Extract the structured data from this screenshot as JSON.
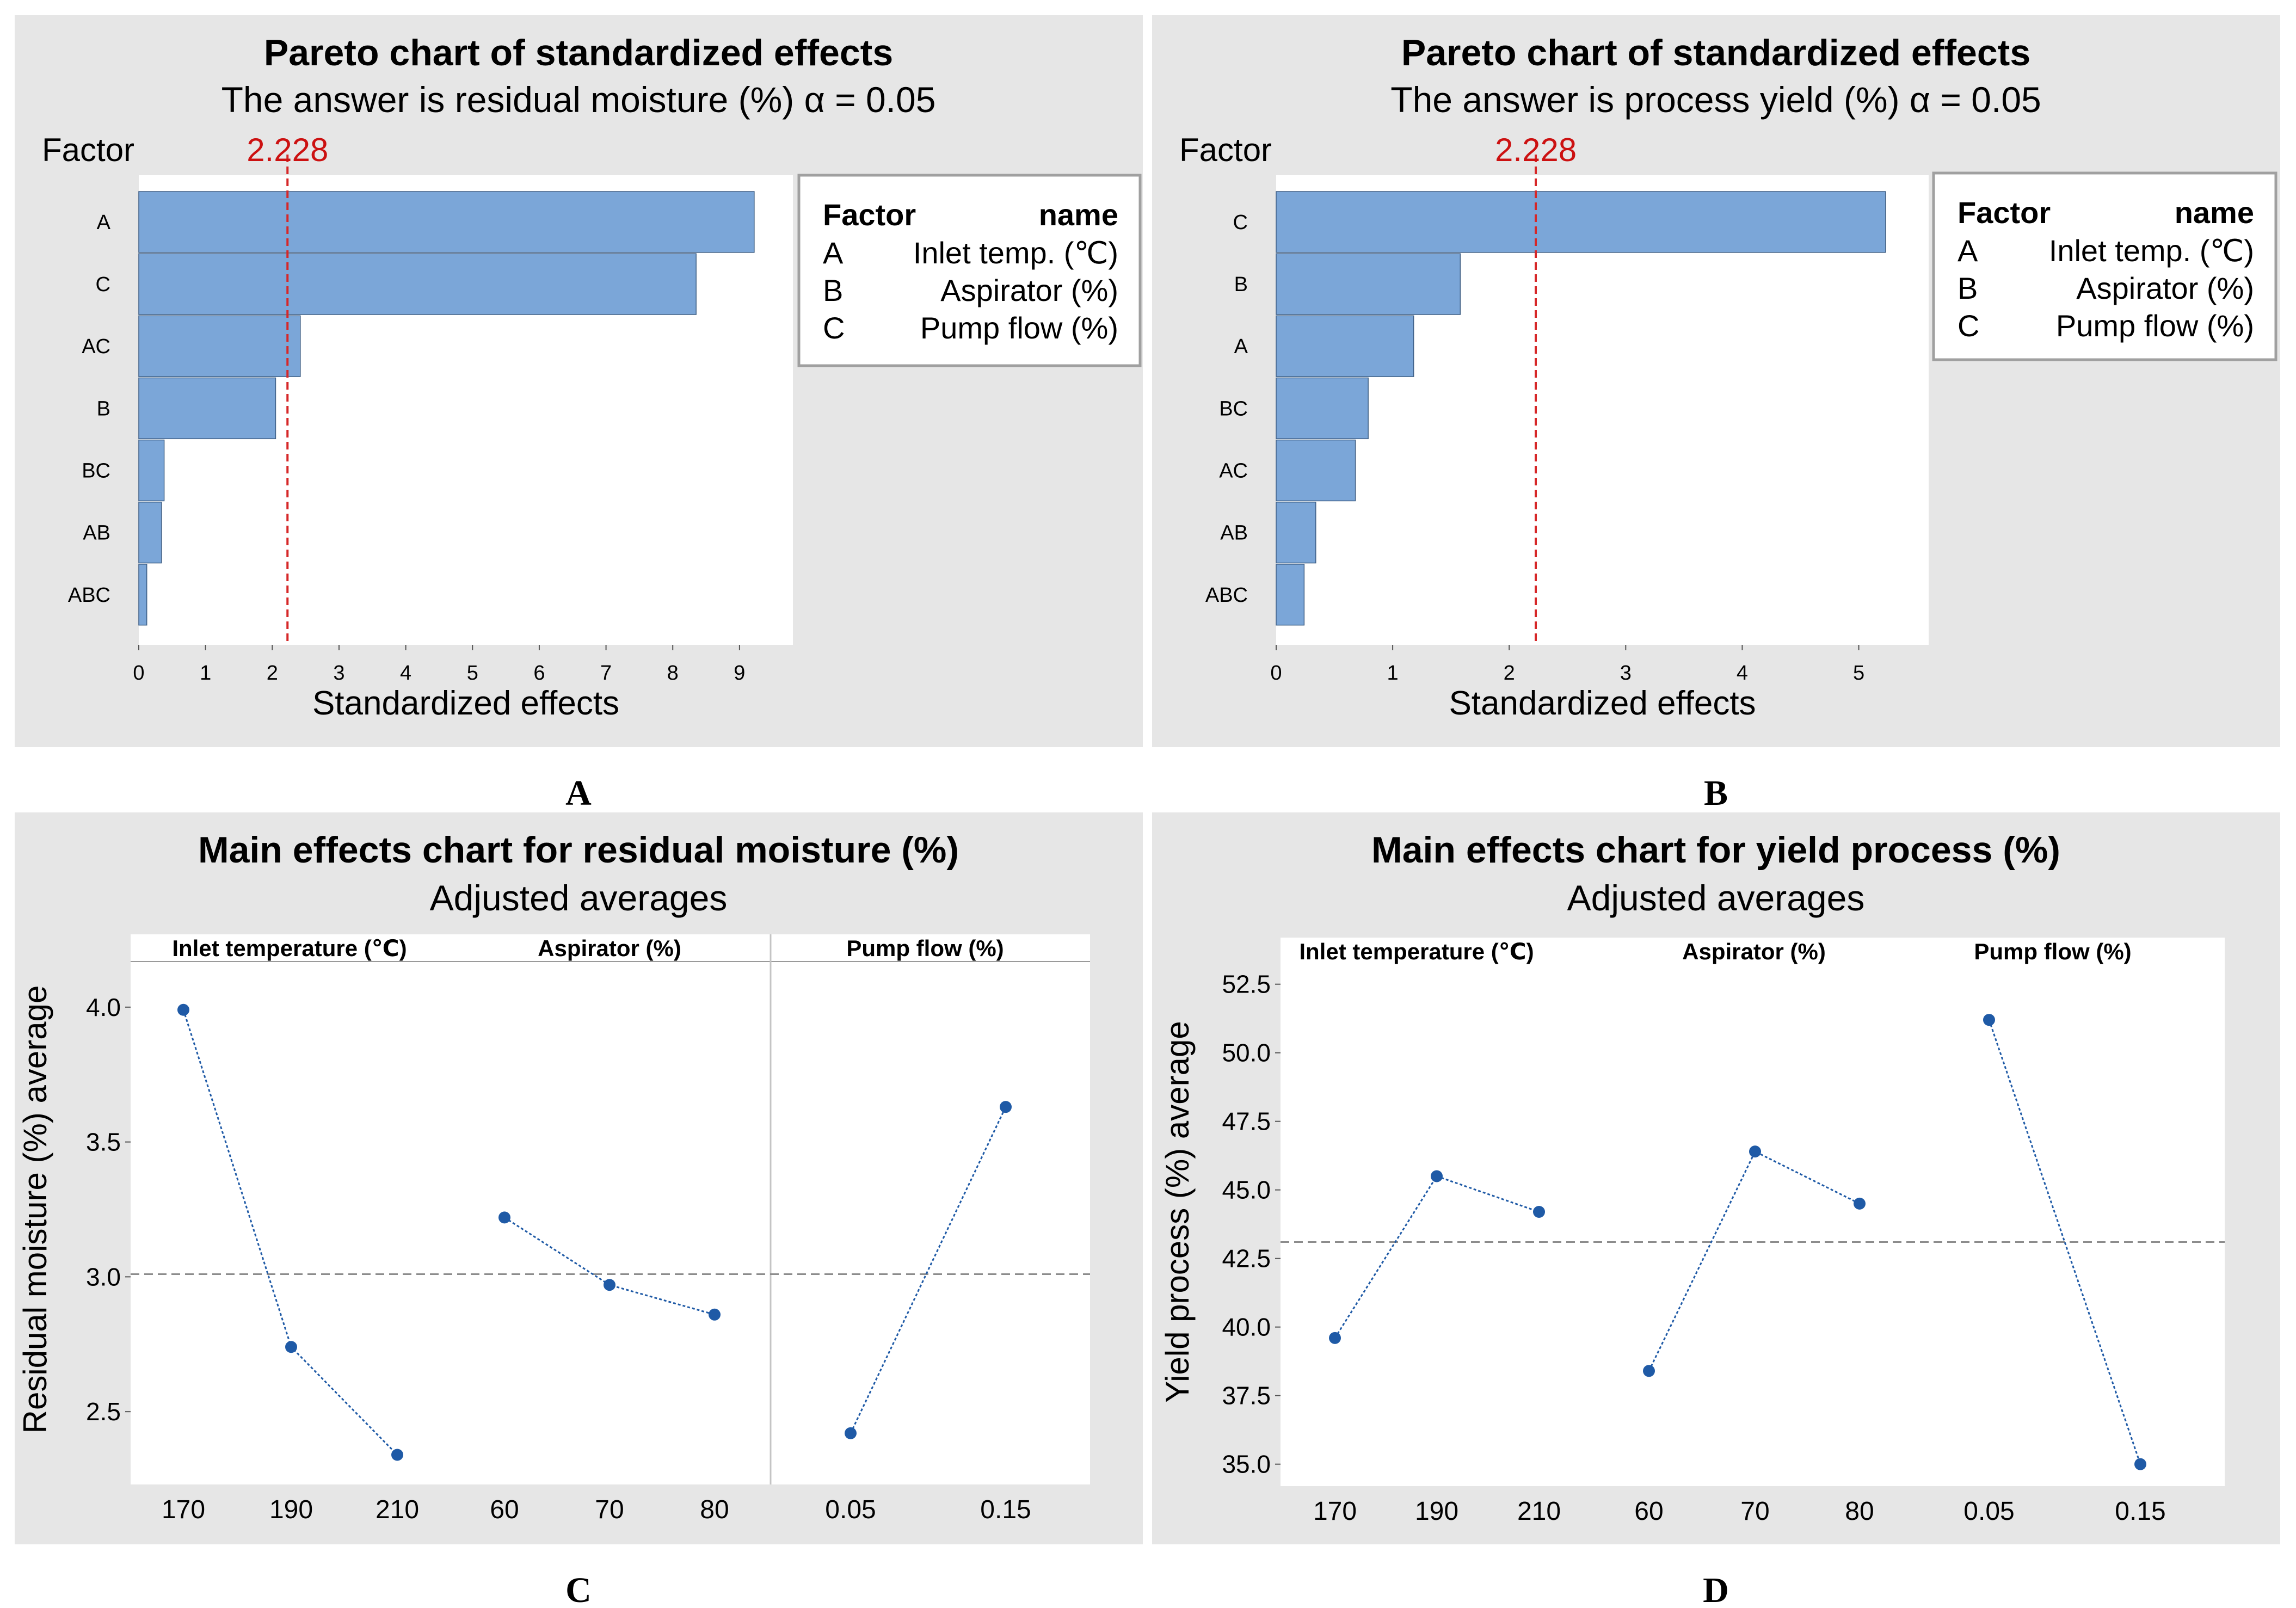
{
  "figure": {
    "background": "#ffffff",
    "panel_background": "#e6e6e6",
    "plot_background": "#ffffff"
  },
  "chart_data": [
    {
      "type": "bar",
      "orientation": "horizontal",
      "id": "A",
      "caption": "A",
      "title": "Pareto chart of standardized effects",
      "subtitle": "The answer is residual moisture (%) α = 0.05",
      "ylabel": "Factor",
      "xlabel": "Standardized effects",
      "reference_value": 2.228,
      "reference_label": "2.228",
      "categories": [
        "A",
        "C",
        "AC",
        "B",
        "BC",
        "AB",
        "ABC"
      ],
      "values": [
        9.22,
        8.35,
        2.42,
        2.05,
        0.38,
        0.34,
        0.12
      ],
      "xlim": [
        0,
        9.8
      ],
      "xticks": [
        "0",
        "1",
        "2",
        "3",
        "4",
        "5",
        "6",
        "7",
        "8",
        "9"
      ],
      "bar_color": "#7ba6d8",
      "legend": {
        "header_factor": "Factor",
        "header_name": "name",
        "entries": [
          {
            "factor": "A",
            "name": "Inlet temp. (℃)"
          },
          {
            "factor": "B",
            "name": "Aspirator (%)"
          },
          {
            "factor": "C",
            "name": "Pump flow (%)"
          }
        ]
      }
    },
    {
      "type": "bar",
      "orientation": "horizontal",
      "id": "B",
      "caption": "B",
      "title": "Pareto chart of standardized effects",
      "subtitle": "The answer is process yield (%) α = 0.05",
      "ylabel": "Factor",
      "xlabel": "Standardized effects",
      "reference_value": 2.228,
      "reference_label": "2.228",
      "categories": [
        "C",
        "B",
        "A",
        "BC",
        "AC",
        "AB",
        "ABC"
      ],
      "values": [
        5.23,
        1.58,
        1.18,
        0.79,
        0.68,
        0.34,
        0.24
      ],
      "xlim": [
        0,
        5.6
      ],
      "xticks": [
        "0",
        "1",
        "2",
        "3",
        "4",
        "5"
      ],
      "bar_color": "#7ba6d8",
      "legend": {
        "header_factor": "Factor",
        "header_name": "name",
        "entries": [
          {
            "factor": "A",
            "name": "Inlet temp. (℃)"
          },
          {
            "factor": "B",
            "name": "Aspirator (%)"
          },
          {
            "factor": "C",
            "name": "Pump flow (%)"
          }
        ]
      }
    },
    {
      "type": "line",
      "id": "C",
      "caption": "C",
      "title": "Main effects chart for residual moisture (%)",
      "subtitle": "Adjusted averages",
      "ylabel": "Residual moisture (%) average",
      "ylim": [
        2.23,
        4.27
      ],
      "yticks": [
        "2.5",
        "3.0",
        "3.5",
        "4.0"
      ],
      "grand_mean": 3.01,
      "point_color": "#1f5aa6",
      "groups": [
        {
          "label": "Inlet temperature (℃)",
          "x": [
            "170",
            "190",
            "210"
          ],
          "values": [
            3.99,
            2.74,
            2.34
          ]
        },
        {
          "label": "Aspirator (%)",
          "x": [
            "60",
            "70",
            "80"
          ],
          "values": [
            3.22,
            2.97,
            2.86
          ]
        },
        {
          "label": "Pump flow (%)",
          "x": [
            "0.05",
            "0.15"
          ],
          "values": [
            2.42,
            3.63
          ]
        }
      ]
    },
    {
      "type": "line",
      "id": "D",
      "caption": "D",
      "title": "Main effects chart for yield process (%)",
      "subtitle": "Adjusted averages",
      "ylabel": "Yield process (%) average",
      "ylim": [
        34.2,
        54.2
      ],
      "yticks": [
        "35.0",
        "37.5",
        "40.0",
        "42.5",
        "45.0",
        "47.5",
        "50.0",
        "52.5"
      ],
      "grand_mean": 43.1,
      "point_color": "#1f5aa6",
      "groups": [
        {
          "label": "Inlet temperature (℃)",
          "x": [
            "170",
            "190",
            "210"
          ],
          "values": [
            39.6,
            45.5,
            44.2
          ]
        },
        {
          "label": "Aspirator (%)",
          "x": [
            "60",
            "70",
            "80"
          ],
          "values": [
            38.4,
            46.4,
            44.5
          ]
        },
        {
          "label": "Pump flow (%)",
          "x": [
            "0.05",
            "0.15"
          ],
          "values": [
            51.2,
            35.0
          ]
        }
      ]
    }
  ]
}
